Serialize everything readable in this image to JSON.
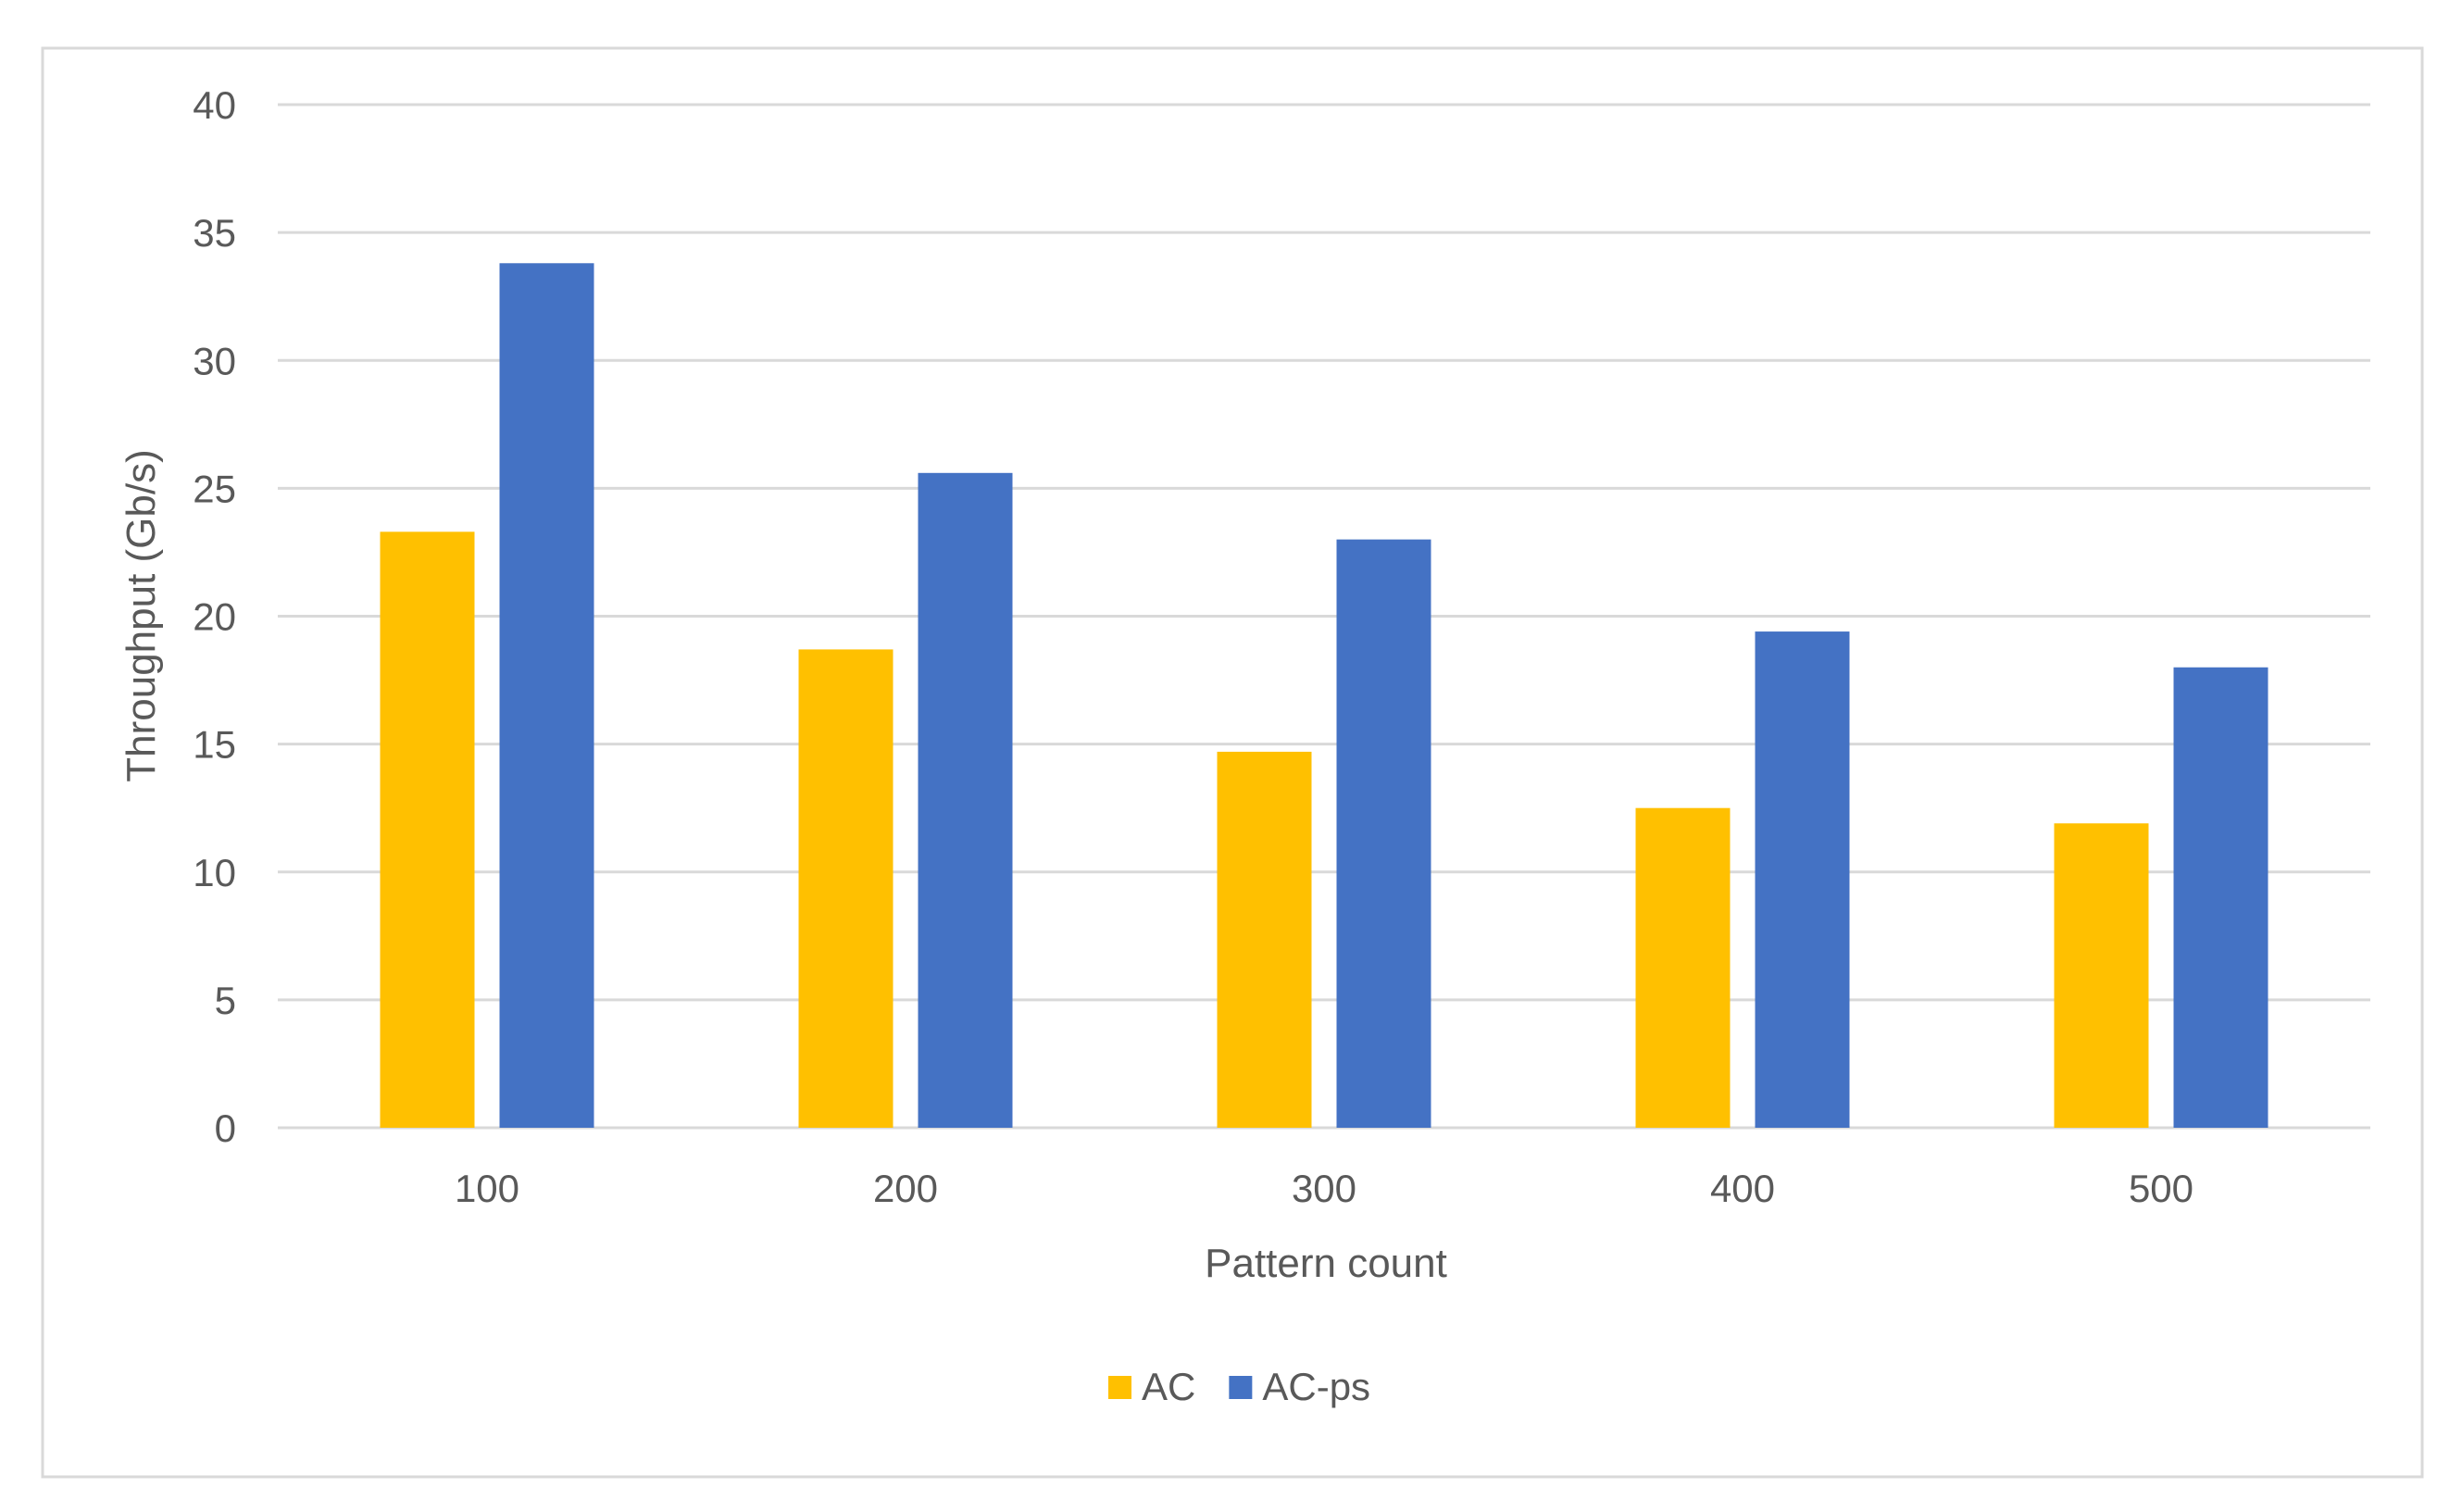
{
  "chart_data": {
    "type": "bar",
    "title": "",
    "xlabel": "Pattern count",
    "ylabel": "Throughput (Gb/s)",
    "categories": [
      "100",
      "200",
      "300",
      "400",
      "500"
    ],
    "series": [
      {
        "name": "AC",
        "color": "#FFC000",
        "values": [
          23.3,
          18.7,
          14.7,
          12.5,
          11.9
        ]
      },
      {
        "name": "AC-ps",
        "color": "#4472C4",
        "values": [
          33.8,
          25.6,
          23.0,
          19.4,
          18.0
        ]
      }
    ],
    "ylim": [
      0,
      40
    ],
    "yticks": [
      0,
      5,
      10,
      15,
      20,
      25,
      30,
      35,
      40
    ],
    "grid": true,
    "legend_position": "bottom"
  }
}
